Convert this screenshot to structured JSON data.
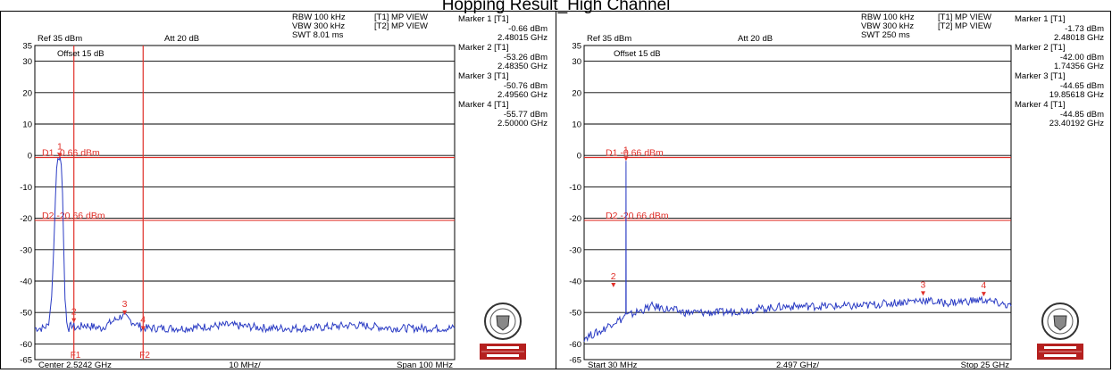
{
  "page": {
    "title": "Hopping Result_High Channel"
  },
  "colors": {
    "trace": "#2b3cc4",
    "marker": "#e0302a",
    "grid": "#000000",
    "frame": "#000000",
    "logo_band": "#b5201f"
  },
  "logo": {
    "band_text": "BUREAU VERITAS",
    "seal_text": "BUREAU VERITAS 1828"
  },
  "panels": [
    {
      "settings": {
        "rbw": "RBW 100 kHz",
        "vbw": "VBW 300 kHz",
        "swt": "SWT 8.01 ms"
      },
      "views": {
        "t1": "[T1] MP VIEW",
        "t2": "[T2] MP VIEW"
      },
      "ref": "Ref 35 dBm",
      "att": "Att 20 dB",
      "offset": "Offset 15 dB",
      "markers": [
        {
          "label": "Marker 1 [T1]",
          "level": "-0.66 dBm",
          "freq": "2.48015 GHz"
        },
        {
          "label": "Marker 2 [T1]",
          "level": "-53.26 dBm",
          "freq": "2.48350 GHz"
        },
        {
          "label": "Marker 3 [T1]",
          "level": "-50.76 dBm",
          "freq": "2.49560 GHz"
        },
        {
          "label": "Marker 4 [T1]",
          "level": "-55.77 dBm",
          "freq": "2.50000 GHz"
        }
      ],
      "display_lines": [
        {
          "label": "D1 -0.66 dBm",
          "value": -0.66
        },
        {
          "label": "D2 -20.66 dBm",
          "value": -20.66
        }
      ],
      "footer": {
        "left": "Center 2.5242 GHz",
        "mid": "10 MHz/",
        "right": "Span 100 MHz"
      },
      "f_lines": [
        {
          "label": "F1"
        },
        {
          "label": "F2"
        }
      ]
    },
    {
      "settings": {
        "rbw": "RBW 100 kHz",
        "vbw": "VBW 300 kHz",
        "swt": "SWT 250 ms"
      },
      "views": {
        "t1": "[T1] MP VIEW",
        "t2": "[T2] MP VIEW"
      },
      "ref": "Ref 35 dBm",
      "att": "Att 20 dB",
      "offset": "Offset 15 dB",
      "markers": [
        {
          "label": "Marker 1 [T1]",
          "level": "-1.73 dBm",
          "freq": "2.48018 GHz"
        },
        {
          "label": "Marker 2 [T1]",
          "level": "-42.00 dBm",
          "freq": "1.74356 GHz"
        },
        {
          "label": "Marker 3 [T1]",
          "level": "-44.65 dBm",
          "freq": "19.85618 GHz"
        },
        {
          "label": "Marker 4 [T1]",
          "level": "-44.85 dBm",
          "freq": "23.40192 GHz"
        }
      ],
      "display_lines": [
        {
          "label": "D1 -0.66 dBm",
          "value": -0.66
        },
        {
          "label": "D2 -20.66 dBm",
          "value": -20.66
        }
      ],
      "footer": {
        "left": "Start 30 MHz",
        "mid": "2.497 GHz/",
        "right": "Stop 25 GHz"
      }
    }
  ],
  "chart_data": [
    {
      "type": "line",
      "title": "",
      "xlabel": "",
      "ylabel": "",
      "x_unit": "GHz",
      "y_unit": "dBm",
      "xlim": [
        2.4742,
        2.5742
      ],
      "ylim": [
        -65,
        35
      ],
      "y_ticks": [
        35,
        30,
        20,
        10,
        0,
        -10,
        -20,
        -30,
        -40,
        -50,
        -60,
        -65
      ],
      "grid": true,
      "legend": "none",
      "series": [
        {
          "x": [
            2.4742,
            2.476,
            2.4775,
            2.4782,
            2.4787,
            2.4791,
            2.4794,
            2.4797,
            2.48,
            2.4802,
            2.4805,
            2.4808,
            2.4811,
            2.4814,
            2.4818,
            2.4823,
            2.483,
            2.484,
            2.486,
            2.49,
            2.495,
            2.5,
            2.51,
            2.52,
            2.53,
            2.54,
            2.55,
            2.56,
            2.5742
          ],
          "y": [
            -55,
            -55,
            -54,
            -45,
            -30,
            -14,
            -3,
            -1,
            -0.7,
            -1,
            -3,
            -12,
            -30,
            -45,
            -53,
            -55,
            -54,
            -55,
            -54,
            -55,
            -51,
            -55,
            -55,
            -54,
            -55,
            -55,
            -54,
            -55,
            -55
          ]
        }
      ],
      "markers": [
        {
          "name": "1",
          "x": 2.48015,
          "y": -0.66
        },
        {
          "name": "2",
          "x": 2.4835,
          "y": -53.26
        },
        {
          "name": "3",
          "x": 2.4956,
          "y": -50.76
        },
        {
          "name": "4",
          "x": 2.5,
          "y": -55.77
        }
      ],
      "reference_lines": {
        "horizontal": [
          -0.66,
          -20.66
        ],
        "vertical_ghz": [
          2.4835,
          2.5
        ]
      }
    },
    {
      "type": "line",
      "title": "",
      "xlabel": "",
      "ylabel": "",
      "x_unit": "GHz",
      "y_unit": "dBm",
      "xlim": [
        0.03,
        25
      ],
      "ylim": [
        -65,
        35
      ],
      "y_ticks": [
        35,
        30,
        20,
        10,
        0,
        -10,
        -20,
        -30,
        -40,
        -50,
        -60,
        -65
      ],
      "grid": true,
      "legend": "none",
      "series": [
        {
          "x": [
            0.03,
            1.0,
            1.74,
            2.3,
            2.47,
            2.48,
            2.49,
            2.6,
            4,
            6,
            8,
            10,
            12,
            14,
            16,
            18,
            19.86,
            21,
            23.4,
            25
          ],
          "y": [
            -58,
            -56,
            -53,
            -52,
            -50,
            -1.73,
            -51,
            -51,
            -48,
            -50,
            -50,
            -49,
            -48,
            -48,
            -48,
            -47,
            -46,
            -47,
            -46,
            -48
          ]
        }
      ],
      "markers": [
        {
          "name": "1",
          "x": 2.48018,
          "y": -1.73
        },
        {
          "name": "2",
          "x": 1.74356,
          "y": -42.0
        },
        {
          "name": "3",
          "x": 19.85618,
          "y": -44.65
        },
        {
          "name": "4",
          "x": 23.40192,
          "y": -44.85
        }
      ],
      "reference_lines": {
        "horizontal": [
          -0.66,
          -20.66
        ],
        "vertical_ghz": []
      }
    }
  ]
}
